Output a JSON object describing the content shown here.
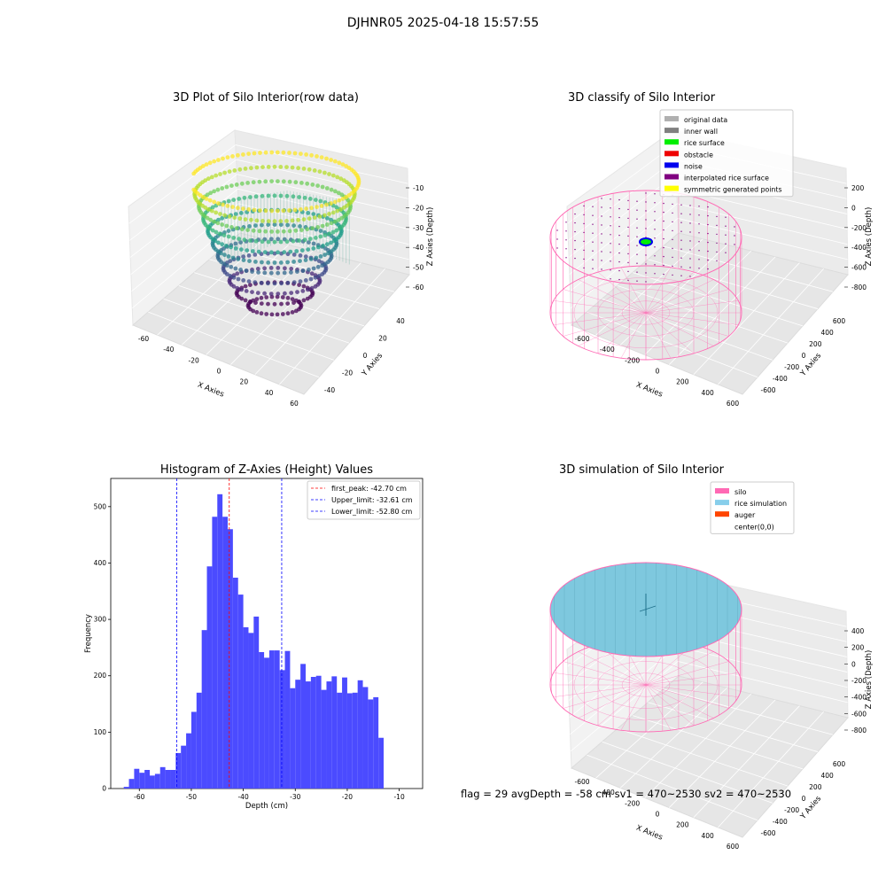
{
  "figure": {
    "suptitle": "DJHNR05 2025-04-18 15:57:55",
    "status_line": "flag = 29  avgDepth = -58 cm   sv1 = 470~2530  sv2 = 470~2530"
  },
  "chart_data": [
    {
      "type": "scatter",
      "title": "3D Plot of Silo Interior(row data)",
      "projection": "3d",
      "xlabel": "X Axies",
      "ylabel": "Y Axies",
      "zlabel": "Z Axies (Depth)",
      "x_ticks": [
        -60,
        -40,
        -20,
        0,
        20,
        40,
        60
      ],
      "y_ticks": [
        -40,
        -20,
        0,
        20,
        40
      ],
      "z_ticks": [
        -10,
        -20,
        -30,
        -40,
        -50,
        -60
      ],
      "xlim": [
        -70,
        65
      ],
      "ylim": [
        -45,
        50
      ],
      "zlim": [
        -65,
        -5
      ],
      "colormap": "viridis",
      "description_of_points": "bowl-shaped point cloud of silo interior, depth from about -65 to -5 cm"
    },
    {
      "type": "scatter",
      "title": "3D classify of Silo Interior",
      "projection": "3d",
      "xlabel": "X Axies",
      "ylabel": "Y Axies",
      "zlabel": "Z Axies (Depth)",
      "x_ticks": [
        -600,
        -400,
        -200,
        0,
        200,
        400,
        600
      ],
      "y_ticks": [
        -600,
        -400,
        -200,
        0,
        200,
        400,
        600
      ],
      "z_ticks": [
        200,
        0,
        -200,
        -400,
        -600,
        -800
      ],
      "legend": [
        {
          "label": "original data",
          "color": "#b0b0b0"
        },
        {
          "label": "inner wall",
          "color": "#808080"
        },
        {
          "label": "rice surface",
          "color": "#00ee00"
        },
        {
          "label": "obstacle",
          "color": "#ee0000"
        },
        {
          "label": "noise",
          "color": "#0000ee"
        },
        {
          "label": "interpolated rice surface",
          "color": "#800080"
        },
        {
          "label": "symmetric generated points",
          "color": "#ffff00"
        }
      ],
      "legend_position": "upper-right"
    },
    {
      "type": "bar",
      "title": "Histogram of Z-Axies (Height) Values",
      "xlabel": "Depth (cm)",
      "ylabel": "Frequency",
      "bar_color": "#4b4bff",
      "xlim": [
        -65.5,
        -5.5
      ],
      "ylim": [
        0,
        550
      ],
      "x_ticks": [
        -60,
        -50,
        -40,
        -30,
        -20,
        -10
      ],
      "y_ticks": [
        0,
        100,
        200,
        300,
        400,
        500
      ],
      "bin_width": 1,
      "bin_start": -63,
      "values": [
        3,
        17,
        35,
        28,
        33,
        23,
        26,
        38,
        33,
        33,
        63,
        76,
        98,
        136,
        170,
        281,
        394,
        482,
        522,
        482,
        460,
        374,
        344,
        286,
        276,
        305,
        242,
        232,
        245,
        245,
        210,
        244,
        178,
        193,
        221,
        190,
        198,
        200,
        175,
        190,
        199,
        170,
        197,
        169,
        170,
        192,
        180,
        158,
        162,
        90
      ],
      "vlines": [
        {
          "x": -42.7,
          "color": "#ff0000",
          "label": "first_peak: -42.70 cm"
        },
        {
          "x": -32.61,
          "color": "#0000ff",
          "label": "Upper_limit: -32.61 cm"
        },
        {
          "x": -52.8,
          "color": "#0000ff",
          "label": "Lower_limit: -52.80 cm"
        }
      ],
      "legend_position": "upper-right"
    },
    {
      "type": "scatter",
      "title": "3D simulation of Silo Interior",
      "projection": "3d",
      "xlabel": "X Axies",
      "ylabel": "Y Axies",
      "zlabel": "Z Axies (Depth)",
      "x_ticks": [
        -600,
        -400,
        -200,
        0,
        200,
        400,
        600
      ],
      "y_ticks": [
        -600,
        -400,
        -200,
        0,
        200,
        400,
        600
      ],
      "z_ticks": [
        400,
        200,
        0,
        -200,
        -400,
        -600,
        -800
      ],
      "legend": [
        {
          "label": "silo",
          "color": "#ff69b4"
        },
        {
          "label": "rice simulation",
          "color": "#87ceeb"
        },
        {
          "label": "auger",
          "color": "#ff4500"
        },
        {
          "label": "center(0,0)",
          "color": ""
        }
      ],
      "legend_position": "upper-right"
    }
  ]
}
